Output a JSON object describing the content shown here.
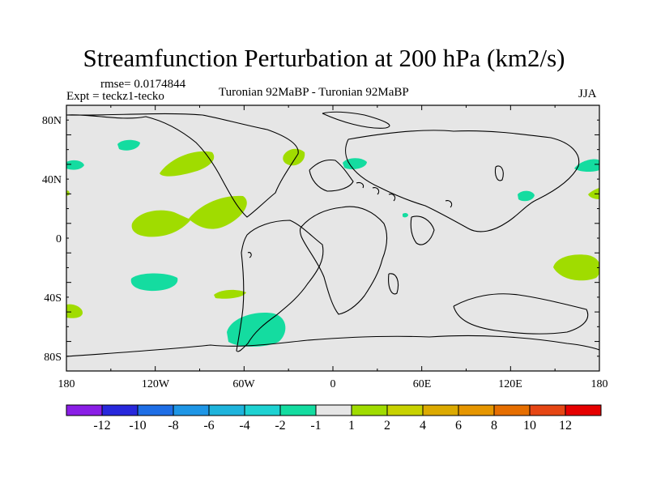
{
  "title": "Streamfunction Perturbation at 200 hPa (km2/s)",
  "header": {
    "rmse": "rmse= 0.0174844",
    "expt": "Expt = teckz1-tecko",
    "experiment_name": "Turonian  92MaBP - Turonian  92MaBP",
    "season": "JJA"
  },
  "map": {
    "ocean_color": "#e6e6e6",
    "coast_color": "#000000",
    "x_ticks": [
      "180",
      "120W",
      "60W",
      "0",
      "60E",
      "120E",
      "180"
    ],
    "y_ticks": [
      "80N",
      "40N",
      "0",
      "40S",
      "80S"
    ]
  },
  "colorbar": {
    "colors": [
      "#8a1ee6",
      "#2828dc",
      "#1e6ee6",
      "#1e96e6",
      "#1eb4dc",
      "#1ed2d2",
      "#14dca0",
      "#e6e6e6",
      "#a0dc00",
      "#c8d200",
      "#dcaa00",
      "#e69600",
      "#e66e00",
      "#e64614",
      "#e60000"
    ],
    "labels": [
      "-12",
      "-10",
      "-8",
      "-6",
      "-4",
      "-2",
      "-1",
      "1",
      "2",
      "4",
      "6",
      "8",
      "10",
      "12"
    ]
  }
}
